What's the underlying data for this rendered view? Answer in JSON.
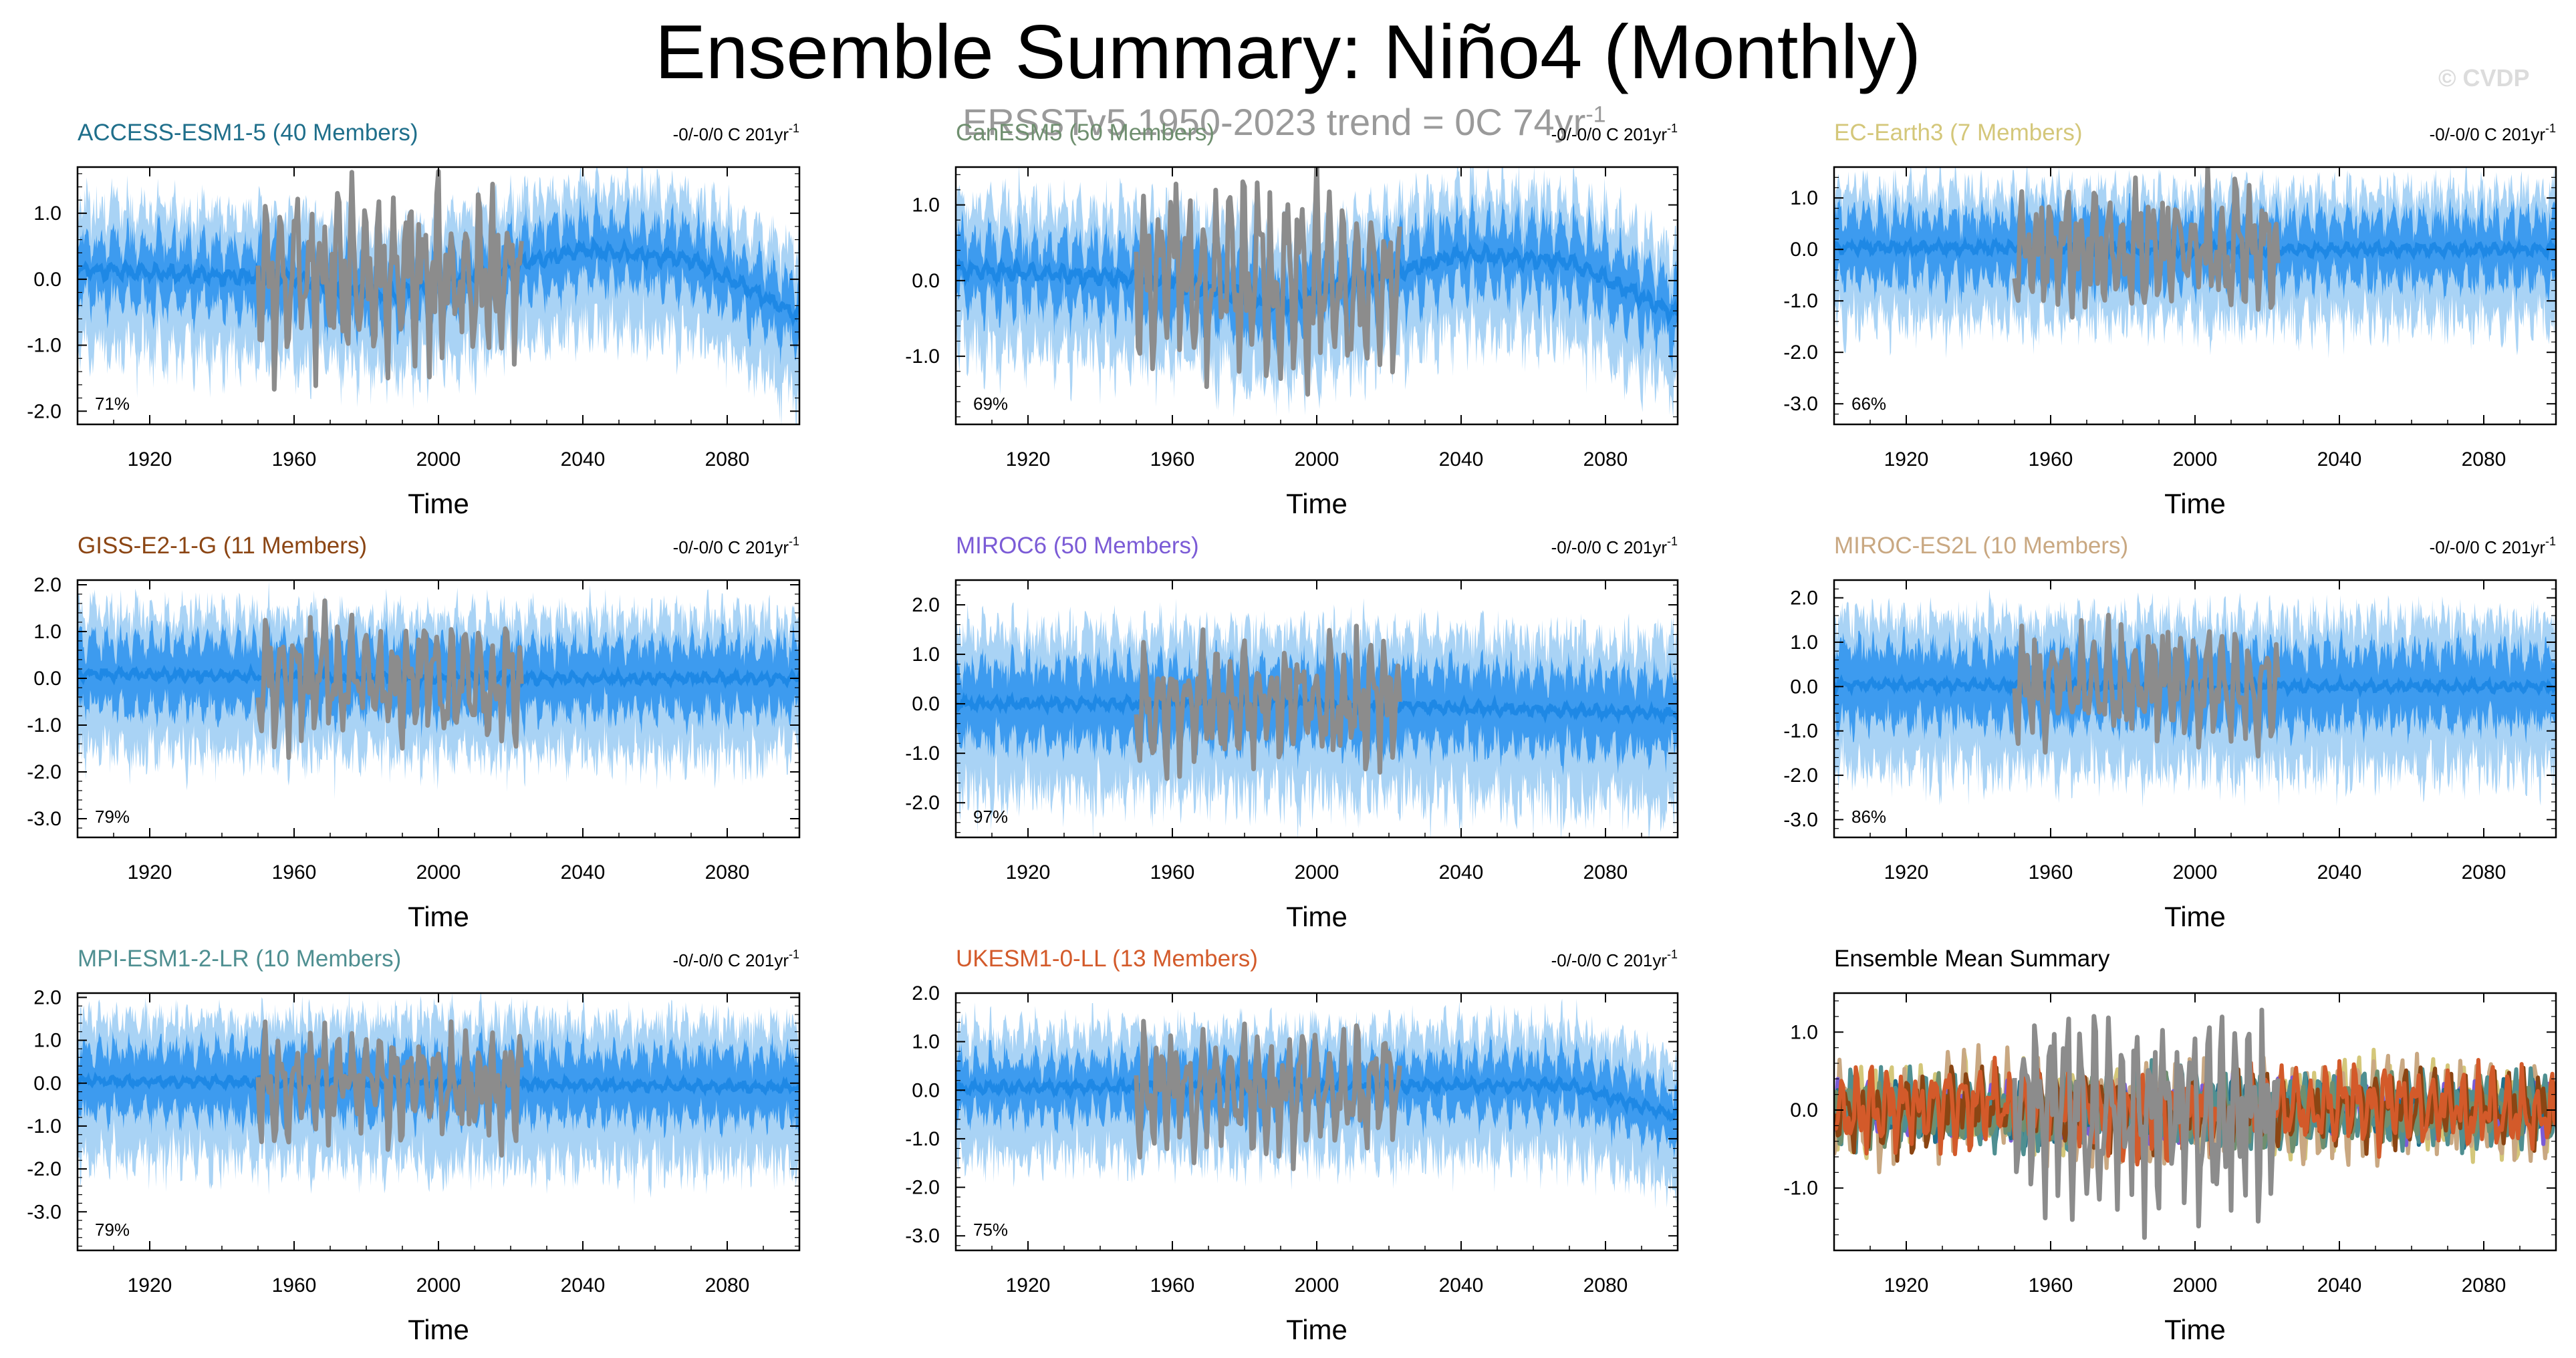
{
  "title": "Ensemble Summary: Niño4 (Monthly)",
  "subtitle": {
    "text": "ERSSTv5 1950-2023 trend = 0C 74yr",
    "sup": "-1"
  },
  "credit": "© CVDP",
  "colors": {
    "ensemble_mean": "#1e88e5",
    "envelope_outer": "#a9d3f5",
    "envelope_inner": "#3d9bef",
    "observations": "#8c8c8c"
  },
  "chart_data": [
    {
      "type": "line",
      "title": "ACCESS-ESM1-5 (40 Members)",
      "title_color": "#1f6f8b",
      "trend_text": "-0/-0/0 C 201yr",
      "trend_sup": "-1",
      "percent": "71%",
      "xlabel": "Time",
      "xlim": [
        1900,
        2100
      ],
      "xticks": [
        "1920",
        "1960",
        "2000",
        "2040",
        "2080"
      ],
      "ylim": [
        -2.2,
        1.7
      ],
      "yticks": [
        "1.0",
        "0.0",
        "-1.0",
        "-2.0"
      ],
      "series": [
        {
          "kind": "ensemble",
          "x_range": [
            1900,
            2100
          ],
          "trend": [
            [
              1900,
              0.15
            ],
            [
              1960,
              0.0
            ],
            [
              1985,
              -0.25
            ],
            [
              2040,
              0.45
            ],
            [
              2070,
              0.3
            ],
            [
              2100,
              -0.55
            ]
          ],
          "inner": 0.45,
          "outer": 0.95
        },
        {
          "kind": "observations",
          "x_range": [
            1950,
            2023
          ],
          "amplitude": 1.1
        }
      ]
    },
    {
      "type": "line",
      "title": "CanESM5 (50 Members)",
      "title_color": "#6f8f6f",
      "trend_text": "-0/-0/0 C 201yr",
      "trend_sup": "-1",
      "percent": "69%",
      "xlabel": "Time",
      "xlim": [
        1900,
        2100
      ],
      "xticks": [
        "1920",
        "1960",
        "2000",
        "2040",
        "2080"
      ],
      "ylim": [
        -1.9,
        1.5
      ],
      "yticks": [
        "1.0",
        "0.0",
        "-1.0"
      ],
      "series": [
        {
          "kind": "ensemble",
          "x_range": [
            1900,
            2100
          ],
          "trend": [
            [
              1900,
              0.15
            ],
            [
              1960,
              0.0
            ],
            [
              1990,
              -0.3
            ],
            [
              2040,
              0.35
            ],
            [
              2070,
              0.25
            ],
            [
              2100,
              -0.45
            ]
          ],
          "inner": 0.4,
          "outer": 0.85
        },
        {
          "kind": "observations",
          "x_range": [
            1950,
            2023
          ],
          "amplitude": 1.05
        }
      ]
    },
    {
      "type": "line",
      "title": "EC-Earth3 (7 Members)",
      "title_color": "#d4c77a",
      "trend_text": "-0/-0/0 C 201yr",
      "trend_sup": "-1",
      "percent": "66%",
      "xlabel": "Time",
      "xlim": [
        1900,
        2100
      ],
      "xticks": [
        "1920",
        "1960",
        "2000",
        "2040",
        "2080"
      ],
      "ylim": [
        -3.4,
        1.6
      ],
      "yticks": [
        "1.0",
        "0.0",
        "-1.0",
        "-2.0",
        "-3.0"
      ],
      "series": [
        {
          "kind": "ensemble",
          "x_range": [
            1900,
            2100
          ],
          "trend": [
            [
              1900,
              0.05
            ],
            [
              2000,
              0.0
            ],
            [
              2100,
              0.0
            ]
          ],
          "inner": 0.6,
          "outer": 1.1
        },
        {
          "kind": "observations",
          "x_range": [
            1950,
            2023
          ],
          "amplitude": 1.0
        }
      ]
    },
    {
      "type": "line",
      "title": "GISS-E2-1-G (11 Members)",
      "title_color": "#8b4513",
      "trend_text": "-0/-0/0 C 201yr",
      "trend_sup": "-1",
      "percent": "79%",
      "xlabel": "Time",
      "xlim": [
        1900,
        2100
      ],
      "xticks": [
        "1920",
        "1960",
        "2000",
        "2040",
        "2080"
      ],
      "ylim": [
        -3.4,
        2.1
      ],
      "yticks": [
        "2.0",
        "1.0",
        "0.0",
        "-1.0",
        "-2.0",
        "-3.0"
      ],
      "series": [
        {
          "kind": "ensemble",
          "x_range": [
            1900,
            2100
          ],
          "trend": [
            [
              1900,
              0.1
            ],
            [
              2000,
              0.0
            ],
            [
              2100,
              0.0
            ]
          ],
          "inner": 0.7,
          "outer": 1.3
        },
        {
          "kind": "observations",
          "x_range": [
            1950,
            2023
          ],
          "amplitude": 1.05
        }
      ]
    },
    {
      "type": "line",
      "title": "MIROC6 (50 Members)",
      "title_color": "#7b5bd6",
      "trend_text": "-0/-0/0 C 201yr",
      "trend_sup": "-1",
      "percent": "97%",
      "xlabel": "Time",
      "xlim": [
        1900,
        2100
      ],
      "xticks": [
        "1920",
        "1960",
        "2000",
        "2040",
        "2080"
      ],
      "ylim": [
        -2.7,
        2.5
      ],
      "yticks": [
        "2.0",
        "1.0",
        "0.0",
        "-1.0",
        "-2.0"
      ],
      "series": [
        {
          "kind": "ensemble",
          "x_range": [
            1900,
            2100
          ],
          "trend": [
            [
              1900,
              0.0
            ],
            [
              2000,
              0.0
            ],
            [
              2100,
              -0.2
            ]
          ],
          "inner": 0.75,
          "outer": 1.45
        },
        {
          "kind": "observations",
          "x_range": [
            1950,
            2023
          ],
          "amplitude": 1.0
        }
      ]
    },
    {
      "type": "line",
      "title": "MIROC-ES2L (10 Members)",
      "title_color": "#c9a882",
      "trend_text": "-0/-0/0 C 201yr",
      "trend_sup": "-1",
      "percent": "86%",
      "xlabel": "Time",
      "xlim": [
        1900,
        2100
      ],
      "xticks": [
        "1920",
        "1960",
        "2000",
        "2040",
        "2080"
      ],
      "ylim": [
        -3.4,
        2.4
      ],
      "yticks": [
        "2.0",
        "1.0",
        "0.0",
        "-1.0",
        "-2.0",
        "-3.0"
      ],
      "series": [
        {
          "kind": "ensemble",
          "x_range": [
            1900,
            2100
          ],
          "trend": [
            [
              1900,
              0.05
            ],
            [
              2000,
              0.0
            ],
            [
              2100,
              0.0
            ]
          ],
          "inner": 0.8,
          "outer": 1.5
        },
        {
          "kind": "observations",
          "x_range": [
            1950,
            2023
          ],
          "amplitude": 1.05
        }
      ]
    },
    {
      "type": "line",
      "title": "MPI-ESM1-2-LR (10 Members)",
      "title_color": "#4f8f91",
      "trend_text": "-0/-0/0 C 201yr",
      "trend_sup": "-1",
      "percent": "79%",
      "xlabel": "Time",
      "xlim": [
        1900,
        2100
      ],
      "xticks": [
        "1920",
        "1960",
        "2000",
        "2040",
        "2080"
      ],
      "ylim": [
        -3.9,
        2.1
      ],
      "yticks": [
        "2.0",
        "1.0",
        "0.0",
        "-1.0",
        "-2.0",
        "-3.0"
      ],
      "series": [
        {
          "kind": "ensemble",
          "x_range": [
            1900,
            2100
          ],
          "trend": [
            [
              1900,
              0.05
            ],
            [
              2000,
              0.0
            ],
            [
              2100,
              -0.1
            ]
          ],
          "inner": 0.75,
          "outer": 1.45
        },
        {
          "kind": "observations",
          "x_range": [
            1950,
            2023
          ],
          "amplitude": 1.05
        }
      ]
    },
    {
      "type": "line",
      "title": "UKESM1-0-LL (13 Members)",
      "title_color": "#d35a2a",
      "trend_text": "-0/-0/0 C 201yr",
      "trend_sup": "-1",
      "percent": "75%",
      "xlabel": "Time",
      "xlim": [
        1900,
        2100
      ],
      "xticks": [
        "1920",
        "1960",
        "2000",
        "2040",
        "2080"
      ],
      "ylim": [
        -3.3,
        2.0
      ],
      "yticks": [
        "2.0",
        "1.0",
        "0.0",
        "-1.0",
        "-2.0",
        "-3.0"
      ],
      "series": [
        {
          "kind": "ensemble",
          "x_range": [
            1900,
            2100
          ],
          "trend": [
            [
              1900,
              0.05
            ],
            [
              2040,
              0.1
            ],
            [
              2070,
              0.1
            ],
            [
              2100,
              -0.55
            ]
          ],
          "inner": 0.55,
          "outer": 1.15
        },
        {
          "kind": "observations",
          "x_range": [
            1950,
            2023
          ],
          "amplitude": 1.0
        }
      ]
    },
    {
      "type": "line",
      "title": "Ensemble Mean Summary",
      "title_color": "#000000",
      "xlabel": "Time",
      "xlim": [
        1900,
        2100
      ],
      "xticks": [
        "1920",
        "1960",
        "2000",
        "2040",
        "2080"
      ],
      "ylim": [
        -1.8,
        1.5
      ],
      "yticks": [
        "1.0",
        "0.0",
        "-1.0"
      ],
      "series": [
        {
          "kind": "mean",
          "color": "#d4c77a",
          "amplitude": 0.55
        },
        {
          "kind": "mean",
          "color": "#c9a882",
          "amplitude": 0.6
        },
        {
          "kind": "mean",
          "color": "#7b5bd6",
          "amplitude": 0.35
        },
        {
          "kind": "mean",
          "color": "#1f6f8b",
          "amplitude": 0.35
        },
        {
          "kind": "mean",
          "color": "#4f8f91",
          "amplitude": 0.45
        },
        {
          "kind": "mean",
          "color": "#6f8f6f",
          "amplitude": 0.4
        },
        {
          "kind": "mean",
          "color": "#8b4513",
          "amplitude": 0.45
        },
        {
          "kind": "mean",
          "color": "#d35a2a",
          "amplitude": 0.5
        },
        {
          "kind": "observations",
          "x_range": [
            1950,
            2023
          ],
          "amplitude": 1.05
        }
      ]
    }
  ]
}
